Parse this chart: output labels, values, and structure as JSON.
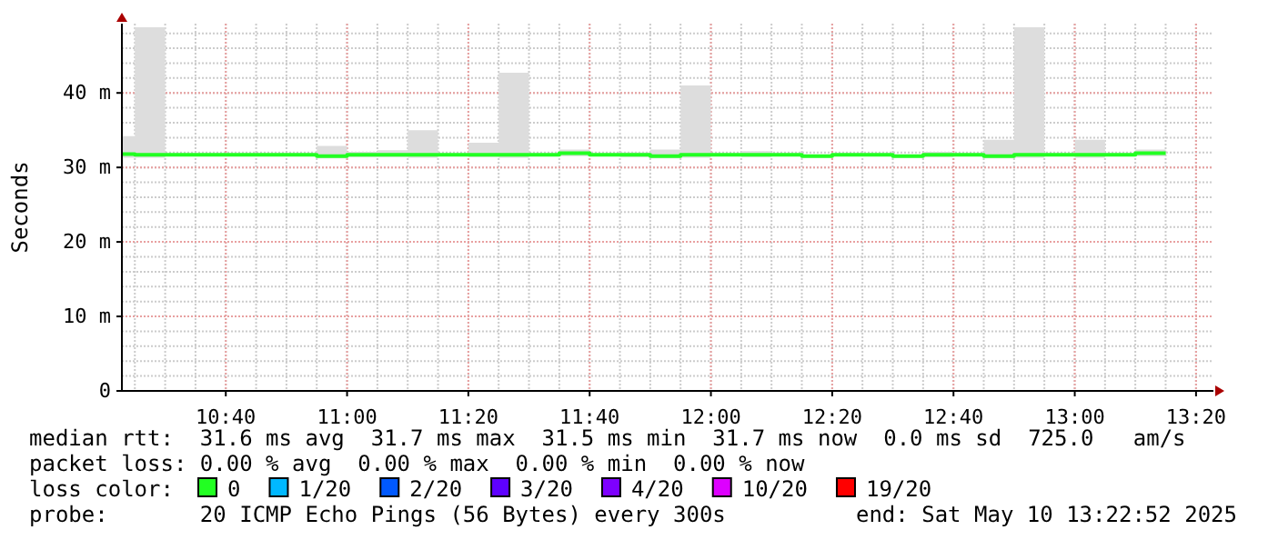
{
  "chart_data": {
    "type": "step",
    "ylabel": "Seconds",
    "x": [
      10.3811,
      10.4167,
      10.5,
      10.5833,
      10.6667,
      10.75,
      10.8333,
      10.9167,
      11,
      11.0833,
      11.1667,
      11.25,
      11.3333,
      11.4167,
      11.5,
      11.5833,
      11.6667,
      11.75,
      11.8333,
      11.9167,
      12,
      12.0833,
      12.1667,
      12.25,
      12.3333,
      12.4167,
      12.5,
      12.5833,
      12.6667,
      12.75,
      12.8333,
      12.9167,
      13,
      13.0833,
      13.1667,
      13.25
    ],
    "xlim": [
      10.3811,
      13.3811
    ],
    "xticks": [
      {
        "value": 10.6667,
        "label": "10:40"
      },
      {
        "value": 11,
        "label": "11:00"
      },
      {
        "value": 11.3333,
        "label": "11:20"
      },
      {
        "value": 11.6667,
        "label": "11:40"
      },
      {
        "value": 12,
        "label": "12:00"
      },
      {
        "value": 12.3333,
        "label": "12:20"
      },
      {
        "value": 12.6667,
        "label": "12:40"
      },
      {
        "value": 13,
        "label": "13:00"
      },
      {
        "value": 13.3333,
        "label": "13:20"
      }
    ],
    "ylim": [
      0,
      49.3
    ],
    "yticks": [
      0,
      {
        "value": 10,
        "label": "10 m"
      },
      {
        "value": 20,
        "label": "20 m"
      },
      {
        "value": 30,
        "label": "30 m"
      },
      {
        "value": 40,
        "label": "40 m"
      }
    ],
    "grid": true,
    "legend": "bottom",
    "legend_title": "loss color:",
    "series": [
      {
        "name": "0",
        "color": "#22ff22",
        "values": [
          31.8,
          31.8,
          31.7,
          31.7,
          31.7,
          31.7,
          31.7,
          31.7,
          31.5,
          31.7,
          31.7,
          31.7,
          31.7,
          31.7,
          31.7,
          31.7,
          31.9,
          31.7,
          31.7,
          31.5,
          31.7,
          31.7,
          31.7,
          31.7,
          31.5,
          31.7,
          31.7,
          31.5,
          31.7,
          31.7,
          31.5,
          31.7,
          31.7,
          31.7,
          31.7,
          31.9
        ],
        "lower": [
          31.3,
          31.3,
          31.3,
          31.5,
          31.5,
          31.5,
          31.5,
          31.5,
          31.2,
          31.4,
          31.4,
          31.3,
          31.5,
          31.4,
          31.3,
          31.5,
          31.5,
          31.5,
          31.4,
          31.2,
          31.3,
          31.5,
          31.4,
          31.5,
          31.3,
          31.5,
          31.5,
          31.3,
          31.4,
          31.5,
          31.2,
          31.3,
          31.5,
          31.3,
          31.5,
          31.5
        ],
        "upper": [
          34.2,
          34.2,
          48.8,
          31.8,
          31.8,
          31.8,
          31.8,
          31.8,
          32.9,
          32.1,
          32.3,
          35.0,
          31.8,
          33.3,
          42.7,
          31.8,
          32.4,
          31.8,
          32.0,
          32.4,
          41.0,
          31.8,
          32.2,
          31.8,
          31.7,
          31.8,
          31.8,
          31.7,
          32.1,
          31.8,
          33.7,
          48.8,
          31.8,
          33.7,
          31.8,
          32.4
        ]
      },
      {
        "name": "1/20",
        "color": "#00b8ff",
        "values": [
          null,
          null,
          null,
          null,
          null,
          null,
          null,
          null,
          null,
          null,
          null,
          null,
          null,
          null,
          null,
          null,
          null,
          null,
          null,
          null,
          null,
          null,
          null,
          null,
          null,
          null,
          null,
          null,
          null,
          null,
          null,
          null,
          null,
          null,
          null,
          null
        ]
      },
      {
        "name": "2/20",
        "color": "#0059ff",
        "values": [
          null,
          null,
          null,
          null,
          null,
          null,
          null,
          null,
          null,
          null,
          null,
          null,
          null,
          null,
          null,
          null,
          null,
          null,
          null,
          null,
          null,
          null,
          null,
          null,
          null,
          null,
          null,
          null,
          null,
          null,
          null,
          null,
          null,
          null,
          null,
          null
        ]
      },
      {
        "name": "3/20",
        "color": "#5e00ff",
        "values": [
          null,
          null,
          null,
          null,
          null,
          null,
          null,
          null,
          null,
          null,
          null,
          null,
          null,
          null,
          null,
          null,
          null,
          null,
          null,
          null,
          null,
          null,
          null,
          null,
          null,
          null,
          null,
          null,
          null,
          null,
          null,
          null,
          null,
          null,
          null,
          null
        ]
      },
      {
        "name": "4/20",
        "color": "#7e00ff",
        "values": [
          null,
          null,
          null,
          null,
          null,
          null,
          null,
          null,
          null,
          null,
          null,
          null,
          null,
          null,
          null,
          null,
          null,
          null,
          null,
          null,
          null,
          null,
          null,
          null,
          null,
          null,
          null,
          null,
          null,
          null,
          null,
          null,
          null,
          null,
          null,
          null
        ]
      },
      {
        "name": "10/20",
        "color": "#dd00ff",
        "values": [
          null,
          null,
          null,
          null,
          null,
          null,
          null,
          null,
          null,
          null,
          null,
          null,
          null,
          null,
          null,
          null,
          null,
          null,
          null,
          null,
          null,
          null,
          null,
          null,
          null,
          null,
          null,
          null,
          null,
          null,
          null,
          null,
          null,
          null,
          null,
          null
        ]
      },
      {
        "name": "19/20",
        "color": "#ff0000",
        "values": [
          null,
          null,
          null,
          null,
          null,
          null,
          null,
          null,
          null,
          null,
          null,
          null,
          null,
          null,
          null,
          null,
          null,
          null,
          null,
          null,
          null,
          null,
          null,
          null,
          null,
          null,
          null,
          null,
          null,
          null,
          null,
          null,
          null,
          null,
          null,
          null
        ]
      }
    ],
    "annotations": [
      "median rtt:  31.6 ms avg  31.7 ms max  31.5 ms min  31.7 ms now  0.0 ms sd  725.0   am/s",
      "packet loss: 0.00 % avg  0.00 % max  0.00 % min  0.00 % now",
      "probe:       20 ICMP Echo Pings (56 Bytes) every 300s",
      "end: Sat May 10 13:22:52 2025"
    ]
  }
}
